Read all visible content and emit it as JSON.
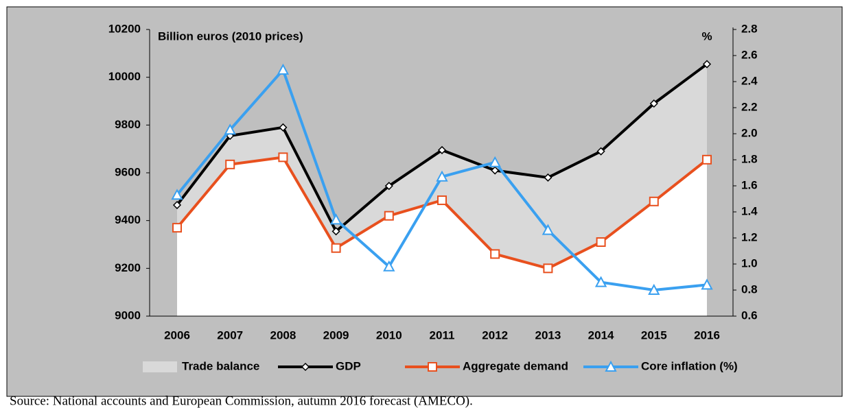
{
  "chart_data": {
    "type": "line",
    "y_axis_label": "Billion euros (2010 prices)",
    "y2_axis_label": "%",
    "categories": [
      "2006",
      "2007",
      "2008",
      "2009",
      "2010",
      "2011",
      "2012",
      "2013",
      "2014",
      "2015",
      "2016"
    ],
    "series": [
      {
        "name": "Trade balance",
        "color": "#d9d9d9",
        "kind": "area",
        "stacked_on": "Aggregate demand",
        "values": [
          95,
          120,
          125,
          70,
          125,
          210,
          350,
          380,
          380,
          410,
          400
        ]
      },
      {
        "name": "GDP",
        "color": "#000000",
        "marker": "diamond",
        "values": [
          9465,
          9755,
          9790,
          9355,
          9545,
          9695,
          9610,
          9580,
          9690,
          9890,
          10055
        ]
      },
      {
        "name": "Aggregate demand",
        "color": "#e8501e",
        "marker": "square",
        "values": [
          9370,
          9635,
          9665,
          9285,
          9420,
          9485,
          9260,
          9200,
          9310,
          9480,
          9655
        ]
      },
      {
        "name": "Core inflation (%)",
        "color": "#3aa0f0",
        "marker": "triangle",
        "axis": "y2",
        "values": [
          1.53,
          2.03,
          2.49,
          1.34,
          0.98,
          1.67,
          1.78,
          1.26,
          0.86,
          0.8,
          0.84
        ]
      }
    ],
    "ylim": [
      9000,
      10200
    ],
    "yticks": [
      9000,
      9200,
      9400,
      9600,
      9800,
      10000,
      10200
    ],
    "y2lim": [
      0.6,
      2.8
    ],
    "y2ticks": [
      0.6,
      0.8,
      {
        "value": 1,
        "label": "1.0"
      },
      1.2,
      1.4,
      1.6,
      1.8,
      {
        "value": 2,
        "label": "2.0"
      },
      2.2,
      2.4,
      2.6,
      2.8
    ],
    "legend": "bottom",
    "source": "Source: National accounts and European Commission, autumn 2016 forecast (AMECO)."
  }
}
